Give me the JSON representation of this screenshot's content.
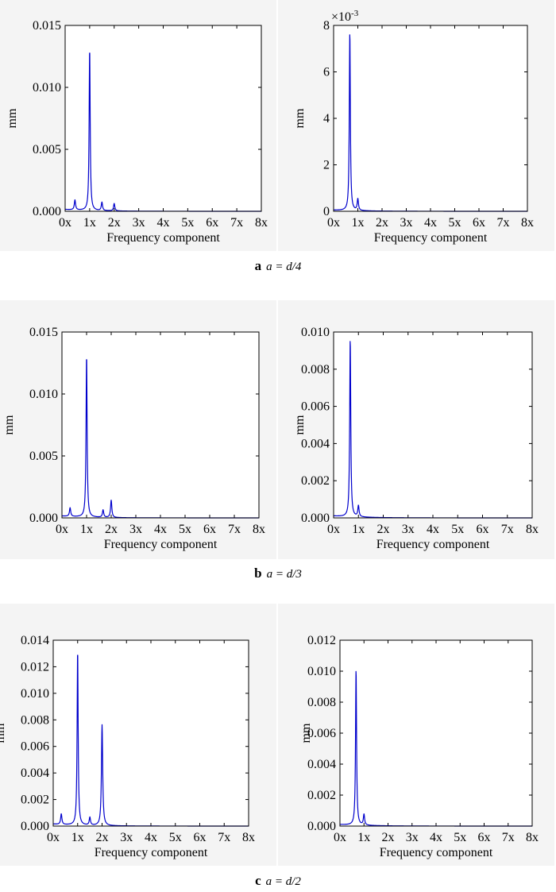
{
  "colors": {
    "series": "#0000cc",
    "axes": "#000000",
    "panel_bg": "#f4f4f4"
  },
  "chart_data": [
    {
      "type": "line",
      "panel": "a",
      "position": "left",
      "xlabel": "Frequency component",
      "ylabel": "mm",
      "xlim": [
        0,
        8
      ],
      "ylim": [
        0,
        0.015
      ],
      "x_ticks": [
        "0x",
        "1x",
        "2x",
        "3x",
        "4x",
        "5x",
        "6x",
        "7x",
        "8x"
      ],
      "y_ticks": [
        "0.000",
        "0.005",
        "0.010",
        "0.015"
      ],
      "y_tick_values": [
        0,
        0.005,
        0.01,
        0.015
      ],
      "exponent_label": "",
      "baseline": 0.00015,
      "peaks": [
        {
          "x": 0.4,
          "y": 0.0008,
          "w": 0.03
        },
        {
          "x": 1.0,
          "y": 0.0131,
          "w": 0.025
        },
        {
          "x": 1.5,
          "y": 0.00068,
          "w": 0.03
        },
        {
          "x": 2.0,
          "y": 0.0006,
          "w": 0.03
        }
      ]
    },
    {
      "type": "line",
      "panel": "a",
      "position": "right",
      "xlabel": "Frequency component",
      "ylabel": "mm",
      "xlim": [
        0,
        8
      ],
      "ylim": [
        0,
        8
      ],
      "x_ticks": [
        "0x",
        "1x",
        "2x",
        "3x",
        "4x",
        "5x",
        "6x",
        "7x",
        "8x"
      ],
      "y_ticks": [
        "0",
        "2",
        "4",
        "6",
        "8"
      ],
      "y_tick_values": [
        0,
        2,
        4,
        6,
        8
      ],
      "exponent_label": {
        "base": "×10",
        "power": "-3"
      },
      "baseline": 0.05,
      "peaks": [
        {
          "x": 0.67,
          "y": 7.7,
          "w": 0.025
        },
        {
          "x": 1.0,
          "y": 0.5,
          "w": 0.03
        }
      ]
    },
    {
      "type": "line",
      "panel": "b",
      "position": "left",
      "xlabel": "Frequency component",
      "ylabel": "mm",
      "xlim": [
        0,
        8
      ],
      "ylim": [
        0,
        0.015
      ],
      "x_ticks": [
        "0x",
        "1x",
        "2x",
        "3x",
        "4x",
        "5x",
        "6x",
        "7x",
        "8x"
      ],
      "y_ticks": [
        "0.000",
        "0.005",
        "0.010",
        "0.015"
      ],
      "y_tick_values": [
        0,
        0.005,
        0.01,
        0.015
      ],
      "exponent_label": "",
      "baseline": 0.00015,
      "peaks": [
        {
          "x": 0.33,
          "y": 0.0007,
          "w": 0.03
        },
        {
          "x": 1.0,
          "y": 0.0131,
          "w": 0.025
        },
        {
          "x": 1.67,
          "y": 0.0006,
          "w": 0.03
        },
        {
          "x": 2.0,
          "y": 0.0014,
          "w": 0.03
        }
      ]
    },
    {
      "type": "line",
      "panel": "b",
      "position": "right",
      "xlabel": "Frequency component",
      "ylabel": "mm",
      "xlim": [
        0,
        8
      ],
      "ylim": [
        0,
        0.01
      ],
      "x_ticks": [
        "0x",
        "1x",
        "2x",
        "3x",
        "4x",
        "5x",
        "6x",
        "7x",
        "8x"
      ],
      "y_ticks": [
        "0.000",
        "0.002",
        "0.004",
        "0.006",
        "0.008",
        "0.010"
      ],
      "y_tick_values": [
        0,
        0.002,
        0.004,
        0.006,
        0.008,
        0.01
      ],
      "exponent_label": "",
      "baseline": 0.0001,
      "peaks": [
        {
          "x": 0.67,
          "y": 0.0096,
          "w": 0.025
        },
        {
          "x": 1.0,
          "y": 0.0006,
          "w": 0.03
        }
      ]
    },
    {
      "type": "line",
      "panel": "c",
      "position": "left",
      "xlabel": "Frequency component",
      "ylabel": "mm",
      "xlim": [
        0,
        8
      ],
      "ylim": [
        0,
        0.014
      ],
      "x_ticks": [
        "0x",
        "1x",
        "2x",
        "3x",
        "4x",
        "5x",
        "6x",
        "7x",
        "8x"
      ],
      "y_ticks": [
        "0.000",
        "0.002",
        "0.004",
        "0.006",
        "0.008",
        "0.010",
        "0.012",
        "0.014"
      ],
      "y_tick_values": [
        0,
        0.002,
        0.004,
        0.006,
        0.008,
        0.01,
        0.012,
        0.014
      ],
      "exponent_label": "",
      "baseline": 0.00015,
      "peaks": [
        {
          "x": 0.33,
          "y": 0.0008,
          "w": 0.03
        },
        {
          "x": 1.0,
          "y": 0.0132,
          "w": 0.025
        },
        {
          "x": 1.5,
          "y": 0.0006,
          "w": 0.03
        },
        {
          "x": 2.0,
          "y": 0.0076,
          "w": 0.03
        }
      ]
    },
    {
      "type": "line",
      "panel": "c",
      "position": "right",
      "xlabel": "Frequency component",
      "ylabel": "mm",
      "xlim": [
        0,
        8
      ],
      "ylim": [
        0,
        0.012
      ],
      "x_ticks": [
        "0x",
        "1x",
        "2x",
        "3x",
        "4x",
        "5x",
        "6x",
        "7x",
        "8x"
      ],
      "y_ticks": [
        "0.000",
        "0.002",
        "0.004",
        "0.006",
        "0.008",
        "0.010",
        "0.012"
      ],
      "y_tick_values": [
        0,
        0.002,
        0.004,
        0.006,
        0.008,
        0.01,
        0.012
      ],
      "exponent_label": "",
      "baseline": 0.0001,
      "peaks": [
        {
          "x": 0.67,
          "y": 0.0101,
          "w": 0.025
        },
        {
          "x": 1.0,
          "y": 0.0007,
          "w": 0.03
        }
      ]
    }
  ],
  "captions": [
    {
      "letter": "a",
      "text": "a = d/4"
    },
    {
      "letter": "b",
      "text": "a = d/3"
    },
    {
      "letter": "c",
      "text": "a = d/2"
    }
  ]
}
